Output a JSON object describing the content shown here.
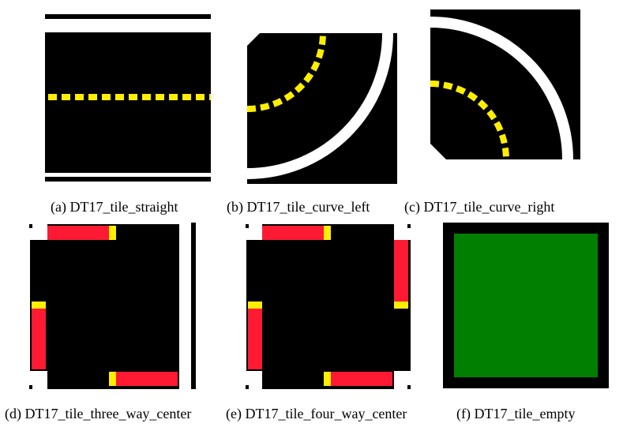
{
  "captions": {
    "a": "(a) DT17_tile_straight",
    "b": "(b) DT17_tile_curve_left",
    "c": "(c) DT17_tile_curve_right",
    "d": "(d) DT17_tile_three_way_center",
    "e": "(e) DT17_tile_four_way_center",
    "f": "(f) DT17_tile_empty"
  },
  "colors": {
    "road": "#000000",
    "white_line": "#ffffff",
    "yellow_line": "#ffee00",
    "red_stop_line": "#ff1a33",
    "grass": "#007f00"
  }
}
